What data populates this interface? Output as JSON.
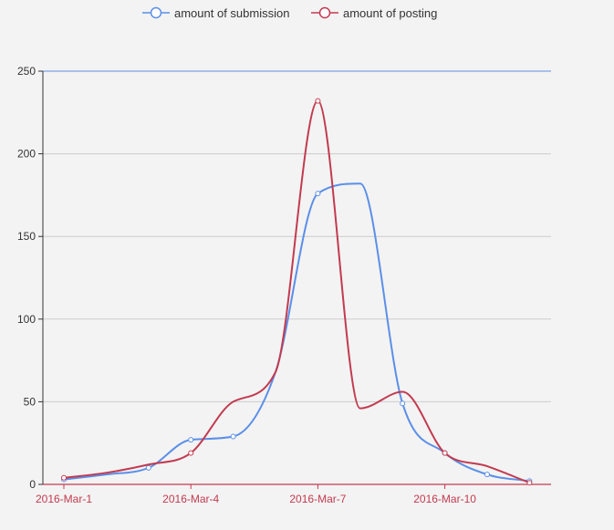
{
  "chart_data": {
    "type": "line",
    "smooth": true,
    "title": "",
    "xlabel": "",
    "ylabel": "",
    "x": [
      "2016-Mar-1",
      "2016-Mar-2",
      "2016-Mar-3",
      "2016-Mar-4",
      "2016-Mar-5",
      "2016-Mar-6",
      "2016-Mar-7",
      "2016-Mar-8",
      "2016-Mar-9",
      "2016-Mar-10",
      "2016-Mar-11",
      "2016-Mar-12"
    ],
    "x_tick_labels": [
      "2016-Mar-1",
      "2016-Mar-4",
      "2016-Mar-7",
      "2016-Mar-10"
    ],
    "y_ticks": [
      0,
      50,
      100,
      150,
      200,
      250
    ],
    "ylim": [
      0,
      250
    ],
    "grid": true,
    "legend_position": "top-center",
    "axis_color": "#c23b50",
    "series": [
      {
        "name": "amount of submission",
        "color": "#5b8fe8",
        "values": [
          3,
          6,
          10,
          27,
          29,
          68,
          176,
          182,
          49,
          19,
          6,
          2
        ]
      },
      {
        "name": "amount of posting",
        "color": "#c23b50",
        "values": [
          4,
          7,
          12,
          19,
          50,
          68,
          232,
          46,
          56,
          19,
          11,
          1
        ]
      }
    ]
  }
}
